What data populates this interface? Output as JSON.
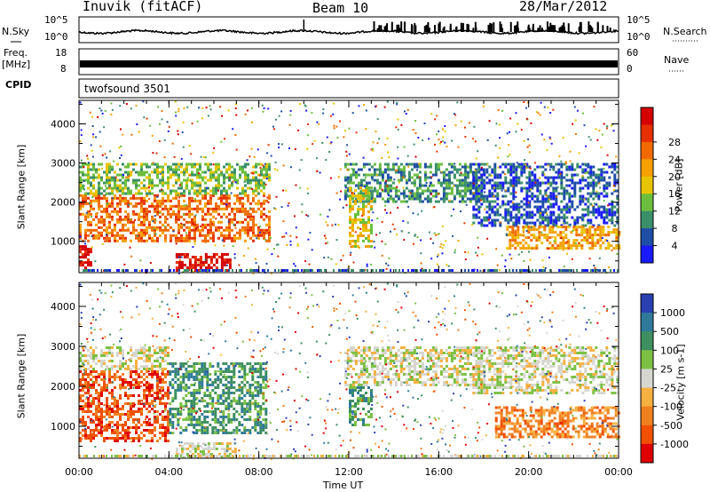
{
  "header": {
    "station": "Inuvik (fitACF)",
    "beam": "Beam 10",
    "date": "28/Mar/2012"
  },
  "noise_panel": {
    "left_label": "N.Sky",
    "right_label": "N.Search",
    "left_ticks": [
      "10^5",
      "10^0"
    ],
    "right_ticks": [
      "10^5",
      "10^0"
    ]
  },
  "freq_panel": {
    "left_label_line1": "Freq.",
    "left_label_line2": "[MHz]",
    "right_label": "Nave",
    "left_ticks": [
      "18",
      "8"
    ],
    "right_ticks": [
      "60",
      "0"
    ]
  },
  "cpid_panel": {
    "label": "CPID",
    "program": "twofsound 3501"
  },
  "chart_data": [
    {
      "type": "heatmap",
      "title": "",
      "xlabel": "",
      "ylabel": "Slant Range [km]",
      "x_ticks": [
        "00:00",
        "04:00",
        "08:00",
        "12:00",
        "16:00",
        "20:00",
        "00:00"
      ],
      "y_ticks": [
        "1000",
        "2000",
        "3000",
        "4000"
      ],
      "ylim": [
        200,
        4600
      ],
      "xlim_hours": [
        0,
        24
      ],
      "colorbar": {
        "label": "Power [dB]",
        "ticks": [
          "4",
          "8",
          "12",
          "16",
          "20",
          "24",
          "28"
        ],
        "colors": [
          "#1a1aff",
          "#1f4ea6",
          "#3a8f6a",
          "#6cbf3e",
          "#e8c400",
          "#f5a000",
          "#f06a00",
          "#e63000",
          "#d40000"
        ]
      },
      "regions": [
        {
          "t0": 0.0,
          "t1": 0.5,
          "r0": 300,
          "r1": 900,
          "level": 8
        },
        {
          "t0": 0.0,
          "t1": 8.5,
          "r0": 1000,
          "r1": 2200,
          "level": 6
        },
        {
          "t0": 0.0,
          "t1": 8.5,
          "r0": 2200,
          "r1": 3000,
          "level": 3
        },
        {
          "t0": 4.3,
          "t1": 6.7,
          "r0": 250,
          "r1": 700,
          "level": 8
        },
        {
          "t0": 11.8,
          "t1": 18.0,
          "r0": 2000,
          "r1": 3000,
          "level": 2
        },
        {
          "t0": 12.0,
          "t1": 13.0,
          "r0": 900,
          "r1": 2400,
          "level": 4
        },
        {
          "t0": 17.5,
          "t1": 24.0,
          "r0": 1400,
          "r1": 3000,
          "level": 1
        },
        {
          "t0": 19.0,
          "t1": 24.0,
          "r0": 800,
          "r1": 1400,
          "level": 5
        }
      ]
    },
    {
      "type": "heatmap",
      "title": "",
      "xlabel": "Time UT",
      "ylabel": "Slant Range [km]",
      "x_ticks": [
        "00:00",
        "04:00",
        "08:00",
        "12:00",
        "16:00",
        "20:00",
        "00:00"
      ],
      "y_ticks": [
        "1000",
        "2000",
        "3000",
        "4000"
      ],
      "ylim": [
        200,
        4600
      ],
      "xlim_hours": [
        0,
        24
      ],
      "colorbar": {
        "label": "Velocity [m s-1]",
        "ticks": [
          "1000",
          "500",
          "100",
          "25",
          "-25",
          "-100",
          "-500",
          "-1000"
        ],
        "colors": [
          "#2a3fb0",
          "#2f7a9a",
          "#3e8f5f",
          "#7bc043",
          "#d6d6d0",
          "#f6b040",
          "#f08020",
          "#f05000",
          "#e00000"
        ]
      },
      "regions": [
        {
          "t0": 0.0,
          "t1": 4.0,
          "r0": 600,
          "r1": 2400,
          "level": 7
        },
        {
          "t0": 0.0,
          "t1": 4.0,
          "r0": 2400,
          "r1": 3000,
          "level": 4
        },
        {
          "t0": 4.0,
          "t1": 8.3,
          "r0": 800,
          "r1": 2600,
          "level": 2
        },
        {
          "t0": 4.3,
          "t1": 7.0,
          "r0": 250,
          "r1": 600,
          "level": 4
        },
        {
          "t0": 11.8,
          "t1": 18.0,
          "r0": 2000,
          "r1": 3000,
          "level": 4
        },
        {
          "t0": 12.0,
          "t1": 13.0,
          "r0": 1000,
          "r1": 2000,
          "level": 2
        },
        {
          "t0": 17.5,
          "t1": 24.0,
          "r0": 1800,
          "r1": 3000,
          "level": 4
        },
        {
          "t0": 18.5,
          "t1": 24.0,
          "r0": 700,
          "r1": 1500,
          "level": 6
        }
      ]
    }
  ],
  "colors": {
    "frame": "#000000",
    "background": "#ffffff"
  }
}
